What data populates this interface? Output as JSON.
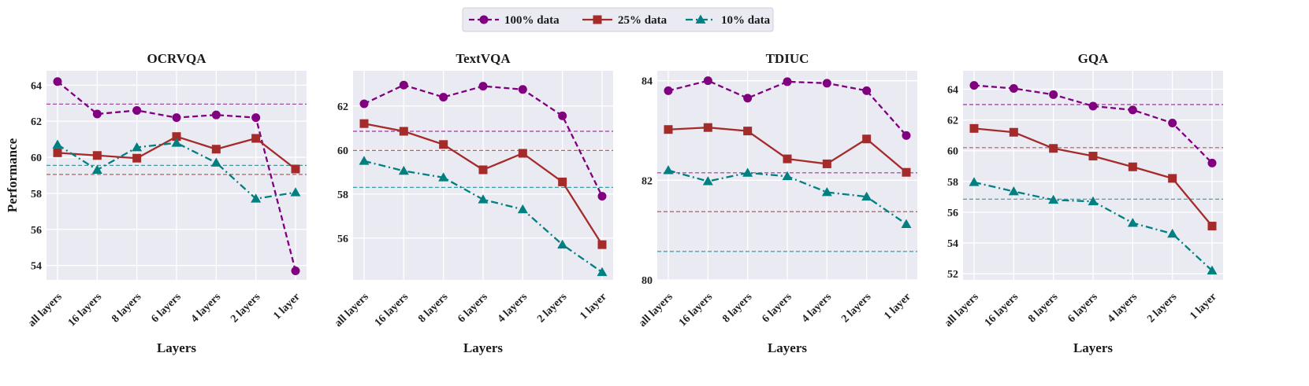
{
  "colors": {
    "panel_bg": "#eaeaf2",
    "grid": "#ffffff",
    "series": {
      "100% data": "#800080",
      "25% data": "#a52a2a",
      "10% data": "#008080"
    }
  },
  "legend": {
    "entries": [
      {
        "name": "100% data",
        "color": "#800080",
        "marker": "circle",
        "dash": "dashed"
      },
      {
        "name": "25% data",
        "color": "#a52a2a",
        "marker": "square",
        "dash": "solid"
      },
      {
        "name": "10% data",
        "color": "#008080",
        "marker": "triangle",
        "dash": "dashdot"
      }
    ]
  },
  "chart_data": [
    {
      "type": "line",
      "title": "OCRVQA",
      "xlabel": "Layers",
      "ylabel": "Performance",
      "categories": [
        "all layers",
        "16 layers",
        "8 layers",
        "6 layers",
        "4 layers",
        "2 layers",
        "1 layer"
      ],
      "ylim": [
        53.2,
        64.8
      ],
      "yticks": [
        54,
        56,
        58,
        60,
        62,
        64
      ],
      "series": [
        {
          "name": "100% data",
          "values": [
            64.2,
            62.4,
            62.6,
            62.2,
            62.35,
            62.2,
            53.7
          ],
          "baseline": 62.95
        },
        {
          "name": "25% data",
          "values": [
            60.25,
            60.1,
            59.95,
            61.15,
            60.45,
            61.05,
            59.35
          ],
          "baseline": 59.05
        },
        {
          "name": "10% data",
          "values": [
            60.7,
            59.3,
            60.55,
            60.8,
            59.7,
            57.7,
            58.05
          ],
          "baseline": 59.55
        }
      ]
    },
    {
      "type": "line",
      "title": "TextVQA",
      "xlabel": "Layers",
      "ylabel": "",
      "categories": [
        "all layers",
        "16 layers",
        "8 layers",
        "6 layers",
        "4 layers",
        "2 layers",
        "1 layer"
      ],
      "ylim": [
        54.1,
        63.6
      ],
      "yticks": [
        56,
        58,
        60,
        62
      ],
      "series": [
        {
          "name": "100% data",
          "values": [
            62.1,
            62.95,
            62.4,
            62.9,
            62.75,
            61.55,
            57.9
          ],
          "baseline": 60.85
        },
        {
          "name": "25% data",
          "values": [
            61.2,
            60.85,
            60.25,
            59.1,
            59.85,
            58.55,
            55.7
          ],
          "baseline": 59.98
        },
        {
          "name": "10% data",
          "values": [
            59.5,
            59.05,
            58.75,
            57.75,
            57.3,
            55.7,
            54.45
          ],
          "baseline": 58.3
        }
      ]
    },
    {
      "type": "line",
      "title": "TDIUC",
      "xlabel": "Layers",
      "ylabel": "",
      "categories": [
        "all layers",
        "16 layers",
        "8 layers",
        "6 layers",
        "4 layers",
        "2 layers",
        "1 layer"
      ],
      "ylim": [
        80,
        84.2
      ],
      "yticks": [
        80,
        82,
        84
      ],
      "series": [
        {
          "name": "100% data",
          "values": [
            83.8,
            84.0,
            83.65,
            83.98,
            83.95,
            83.8,
            82.9
          ],
          "baseline": 82.15
        },
        {
          "name": "25% data",
          "values": [
            83.02,
            83.06,
            82.99,
            82.43,
            82.33,
            82.83,
            82.16
          ],
          "baseline": 81.37
        },
        {
          "name": "10% data",
          "values": [
            82.2,
            81.98,
            82.15,
            82.08,
            81.76,
            81.67,
            81.12
          ],
          "baseline": 80.57
        }
      ]
    },
    {
      "type": "line",
      "title": "GQA",
      "xlabel": "Layers",
      "ylabel": "",
      "categories": [
        "all layers",
        "16 layers",
        "8 layers",
        "6 layers",
        "4 layers",
        "2 layers",
        "1 layer"
      ],
      "ylim": [
        51.6,
        65.2
      ],
      "yticks": [
        52,
        54,
        56,
        58,
        60,
        62,
        64
      ],
      "series": [
        {
          "name": "100% data",
          "values": [
            64.25,
            64.05,
            63.65,
            62.9,
            62.65,
            61.8,
            59.2
          ],
          "baseline": 63.0
        },
        {
          "name": "25% data",
          "values": [
            61.45,
            61.2,
            60.15,
            59.65,
            58.95,
            58.2,
            55.1
          ],
          "baseline": 60.2
        },
        {
          "name": "10% data",
          "values": [
            57.95,
            57.35,
            56.8,
            56.7,
            55.3,
            54.6,
            52.2
          ],
          "baseline": 56.85
        }
      ]
    }
  ]
}
